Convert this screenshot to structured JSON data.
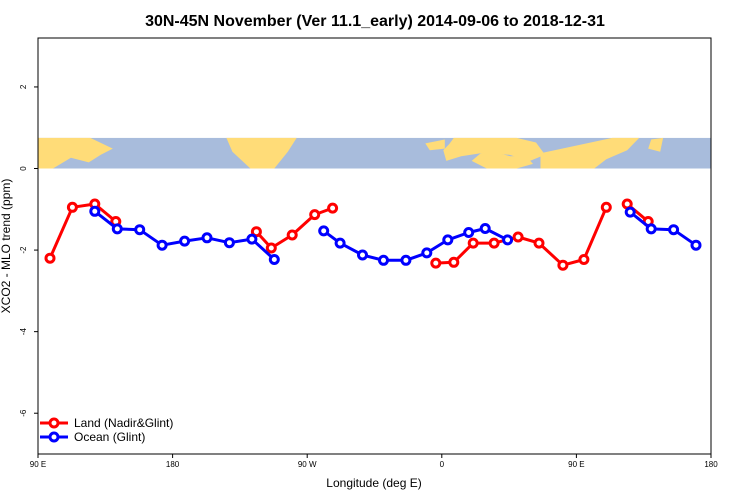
{
  "chart_data": {
    "type": "line",
    "title": "30N-45N November (Ver 11.1_early)   2014-09-06 to 2018-12-31",
    "xlabel": "Longitude (deg E)",
    "ylabel": "XCO2 - MLO trend (ppm)",
    "xlim": [
      90,
      540
    ],
    "ylim": [
      -7,
      3.2
    ],
    "x_ticks": [
      90,
      180,
      270,
      360,
      450,
      540
    ],
    "x_tick_labels": [
      "90 E",
      "180",
      "90 W",
      "0",
      "90 E",
      "180"
    ],
    "y_ticks": [
      -6,
      -4,
      -2,
      0,
      2
    ],
    "y_tick_labels": [
      "-6",
      "-4",
      "-2",
      "0",
      "2"
    ],
    "map_strip": {
      "y_range": [
        0,
        0.75
      ],
      "land_color": "#ffdc78",
      "ocean_color": "#a8bcdc"
    },
    "legend_position": "bottom-left",
    "series": [
      {
        "name": "Land (Nadir&Glint)",
        "color": "#ff0000",
        "segments": [
          {
            "x": [
              98,
              113,
              128,
              142
            ],
            "y": [
              -2.2,
              -0.95,
              -0.87,
              -1.3
            ]
          },
          {
            "x": [
              236,
              246,
              260,
              275,
              287
            ],
            "y": [
              -1.55,
              -1.95,
              -1.63,
              -1.13,
              -0.97
            ]
          },
          {
            "x": [
              356,
              368,
              381,
              395,
              411,
              425,
              441,
              455,
              470
            ],
            "y": [
              -2.32,
              -2.3,
              -1.83,
              -1.83,
              -1.68,
              -1.83,
              -2.37,
              -2.23,
              -0.95
            ]
          },
          {
            "x": [
              484,
              498
            ],
            "y": [
              -0.87,
              -1.3
            ]
          }
        ]
      },
      {
        "name": "Ocean (Glint)",
        "color": "#0000ff",
        "segments": [
          {
            "x": [
              128,
              143,
              158,
              173,
              188,
              203,
              218,
              233,
              248
            ],
            "y": [
              -1.05,
              -1.48,
              -1.5,
              -1.88,
              -1.78,
              -1.7,
              -1.82,
              -1.73,
              -2.23
            ]
          },
          {
            "x": [
              281,
              292,
              307,
              321,
              336,
              350,
              364,
              378,
              389,
              404
            ],
            "y": [
              -1.53,
              -1.83,
              -2.12,
              -2.25,
              -2.25,
              -2.07,
              -1.75,
              -1.57,
              -1.47,
              -1.75
            ]
          },
          {
            "x": [
              486,
              500,
              515,
              530
            ],
            "y": [
              -1.07,
              -1.48,
              -1.5,
              -1.88
            ]
          }
        ]
      }
    ]
  }
}
